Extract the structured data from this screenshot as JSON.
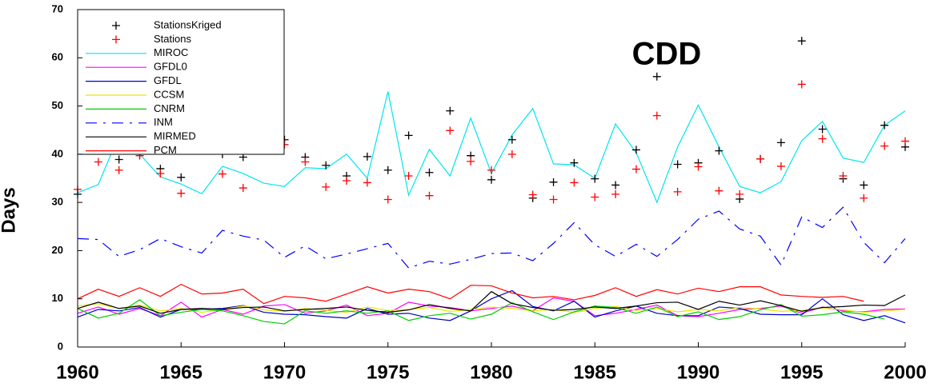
{
  "chart_data": {
    "type": "line",
    "title": "CDD",
    "y_label": "Days",
    "x": [
      1960,
      1961,
      1962,
      1963,
      1964,
      1965,
      1966,
      1967,
      1968,
      1969,
      1970,
      1971,
      1972,
      1973,
      1974,
      1975,
      1976,
      1977,
      1978,
      1979,
      1980,
      1981,
      1982,
      1983,
      1984,
      1985,
      1986,
      1987,
      1988,
      1989,
      1990,
      1991,
      1992,
      1993,
      1994,
      1995,
      1996,
      1997,
      1998,
      1999,
      2000
    ],
    "xlim": [
      1960,
      2000
    ],
    "xticks": [
      1960,
      1965,
      1970,
      1975,
      1980,
      1985,
      1990,
      1995,
      2000
    ],
    "ylim": [
      0,
      70
    ],
    "yticks": [
      0,
      10,
      20,
      30,
      40,
      50,
      60,
      70
    ],
    "legend": "upper left",
    "series": [
      {
        "name": "StationsKriged",
        "color": "#000000",
        "marker": "+",
        "values": [
          31.7,
          44.5,
          38.9,
          40,
          37,
          35.2,
          45,
          40,
          39.4,
          42,
          43,
          39.4,
          37.7,
          35.5,
          39.5,
          36.7,
          43.9,
          36.2,
          49,
          39.7,
          34.7,
          43,
          30.9,
          34.2,
          38.2,
          34.9,
          33.6,
          40.9,
          56.1,
          37.9,
          38.2,
          40.7,
          30.7,
          39,
          42.4,
          63.5,
          45.2,
          34.9,
          33.6,
          46,
          41.5
        ]
      },
      {
        "name": "Stations",
        "color": "#ff0000",
        "marker": "+",
        "values": [
          32.7,
          38.4,
          36.7,
          39.7,
          36,
          31.9,
          44,
          35.9,
          33,
          41,
          42,
          38.4,
          33.2,
          34.5,
          34.1,
          30.6,
          35.5,
          31.4,
          44.9,
          38.5,
          36.7,
          40,
          31.6,
          30.6,
          34.1,
          31.1,
          31.7,
          36.9,
          48,
          32.2,
          37.4,
          32.4,
          31.7,
          39,
          37.5,
          54.5,
          43.2,
          35.5,
          30.9,
          41.7,
          42.7
        ]
      },
      {
        "name": "MIROC",
        "color": "#00e5ee",
        "values": [
          32,
          33.7,
          44,
          40,
          35.3,
          33.8,
          31.8,
          37.5,
          36,
          34,
          33.3,
          37.2,
          37,
          40,
          35,
          53,
          31.5,
          41,
          35.5,
          47.5,
          36,
          44,
          49.5,
          38,
          37.8,
          35,
          46.3,
          40.3,
          30,
          41.5,
          50.2,
          41.5,
          33.3,
          32,
          34.3,
          42.8,
          46.8,
          39.2,
          38.3,
          46,
          49
        ]
      },
      {
        "name": "GFDL0",
        "color": "#ff00ff",
        "values": [
          7,
          8.3,
          6.8,
          8,
          6.5,
          9.3,
          6.2,
          7.8,
          6.8,
          8.5,
          8.8,
          7,
          7.5,
          8.7,
          6.5,
          7,
          9.3,
          8.5,
          8.2,
          7.5,
          8,
          8.5,
          7.5,
          10.2,
          9.5,
          6.5,
          7,
          7.8,
          8.7,
          6.5,
          6.3,
          7,
          7.8,
          8,
          8.5,
          7,
          8.3,
          7.5,
          7.3,
          7.8,
          7.9
        ]
      },
      {
        "name": "GFDL",
        "color": "#0000cc",
        "values": [
          6.2,
          7.8,
          7.5,
          8.2,
          6.2,
          7.8,
          7.8,
          8,
          8.6,
          7.2,
          6.8,
          6.7,
          6.3,
          6,
          8,
          6.8,
          7,
          6,
          5.5,
          7.5,
          10,
          11.7,
          8.4,
          7.5,
          9.5,
          6.2,
          7.5,
          8.5,
          7,
          6.5,
          6.5,
          8.3,
          8,
          6.8,
          6.7,
          6.7,
          10,
          6.7,
          5.5,
          6.5,
          5
        ]
      },
      {
        "name": "CCSM",
        "color": "#e6e600",
        "values": [
          8.5,
          9,
          8,
          8.7,
          7.5,
          8,
          7.2,
          7.8,
          8.5,
          7.7,
          7.4,
          8,
          7.6,
          7.2,
          8.3,
          7.6,
          7.8,
          8.2,
          7.4,
          7.8,
          8.3,
          8,
          7.5,
          7.8,
          7.2,
          8,
          8.4,
          7.6,
          8,
          7.3,
          7.8,
          7.5,
          8.2,
          7.9,
          7.4,
          7.6,
          8.1,
          7.7,
          7.2,
          7.5,
          7.8
        ]
      },
      {
        "name": "CNRM",
        "color": "#00cc00",
        "values": [
          8,
          6,
          7,
          9.8,
          6.5,
          7.2,
          7.8,
          7.5,
          6.5,
          5.3,
          4.8,
          7.5,
          7,
          7.5,
          7,
          7.5,
          5.5,
          6.5,
          7,
          5.8,
          6.8,
          9.2,
          7.3,
          5.7,
          7.3,
          8.5,
          8.2,
          7,
          8.3,
          6.3,
          7.3,
          5.7,
          6.3,
          7.7,
          8.8,
          6.4,
          6.7,
          7.3,
          6.8,
          5.8,
          null
        ]
      },
      {
        "name": "INM",
        "color": "#0000ff",
        "line_style": "dash-dot",
        "values": [
          22.5,
          22.3,
          18.8,
          20.2,
          22.5,
          20.8,
          19.5,
          24.2,
          23,
          22.2,
          18.6,
          21,
          18.3,
          19.3,
          20.4,
          21.5,
          16.4,
          17.8,
          17.2,
          18.2,
          19.4,
          19.5,
          17.9,
          21.5,
          25.8,
          21.2,
          18.8,
          21.3,
          18.8,
          22.3,
          26.5,
          28.2,
          24.5,
          23,
          17,
          27,
          24.8,
          29,
          21.7,
          17.5,
          22.5
        ]
      },
      {
        "name": "MIRMED",
        "color": "#000000",
        "values": [
          8,
          9.3,
          8,
          8.5,
          7,
          7.8,
          8,
          7.8,
          8.2,
          8.3,
          7.5,
          7.8,
          8,
          8.3,
          7.6,
          7.2,
          7.7,
          8.8,
          8,
          7.5,
          11.5,
          9,
          8.2,
          7.6,
          7.8,
          8.3,
          8,
          8.5,
          9.2,
          9.3,
          7.8,
          9.5,
          8.7,
          9.6,
          8.6,
          7.4,
          8.2,
          8.4,
          8.7,
          8.6,
          10.8
        ]
      },
      {
        "name": "PCM",
        "color": "#ff0000",
        "values": [
          10,
          12,
          10.5,
          12.3,
          10.5,
          13,
          11,
          11.2,
          12,
          9,
          10.5,
          10.2,
          9.5,
          11,
          12.5,
          11.2,
          12,
          11.5,
          10,
          12.8,
          12.7,
          11.2,
          10.2,
          10.5,
          9.8,
          10.7,
          12.3,
          10.5,
          11.9,
          11,
          12.2,
          11.5,
          12.5,
          12.5,
          10.8,
          10.5,
          10.3,
          10.5,
          9.5,
          null,
          null
        ]
      }
    ]
  }
}
